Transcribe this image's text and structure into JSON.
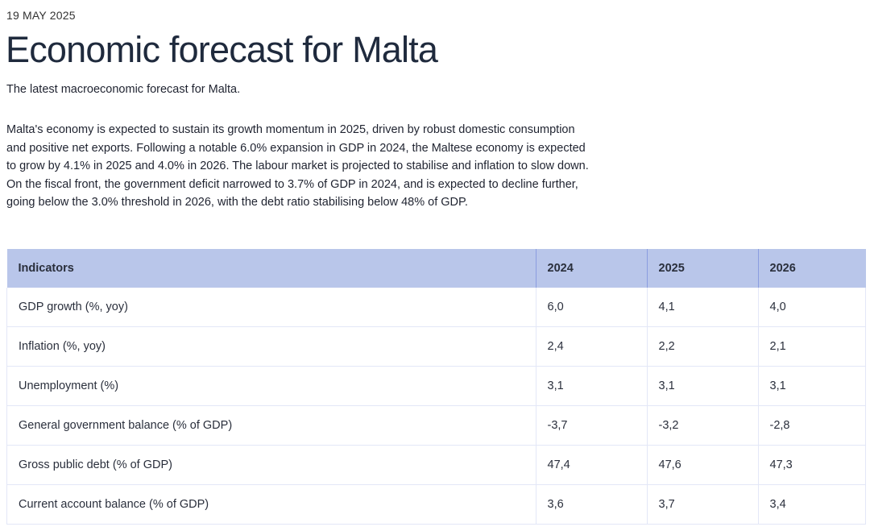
{
  "date": "19 MAY 2025",
  "title": "Economic forecast for Malta",
  "subtitle": "The latest macroeconomic forecast for Malta.",
  "paragraph": "Malta's economy is expected to sustain its growth momentum in 2025, driven by robust domestic consumption and positive net exports. Following a notable 6.0% expansion in GDP in 2024, the Maltese economy is expected to grow by 4.1% in 2025 and 4.0% in 2026. The labour market is projected to stabilise and inflation to slow down. On the fiscal front, the government deficit narrowed to 3.7% of GDP in 2024, and is expected to decline further, going below the 3.0% threshold in 2026, with the debt ratio stabilising below 48% of GDP.",
  "table": {
    "headers": [
      "Indicators",
      "2024",
      "2025",
      "2026"
    ],
    "rows": [
      [
        "GDP growth (%, yoy)",
        "6,0",
        "4,1",
        "4,0"
      ],
      [
        "Inflation (%, yoy)",
        "2,4",
        "2,2",
        "2,1"
      ],
      [
        "Unemployment (%)",
        "3,1",
        "3,1",
        "3,1"
      ],
      [
        "General government balance (% of GDP)",
        "-3,7",
        "-3,2",
        "-2,8"
      ],
      [
        "Gross public debt (% of GDP)",
        "47,4",
        "47,6",
        "47,3"
      ],
      [
        "Current account balance (% of GDP)",
        "3,6",
        "3,7",
        "3,4"
      ]
    ]
  },
  "colors": {
    "header_bg": "#b9c6ea",
    "header_divider": "#8b9de0",
    "row_border": "#e3e7f7"
  }
}
